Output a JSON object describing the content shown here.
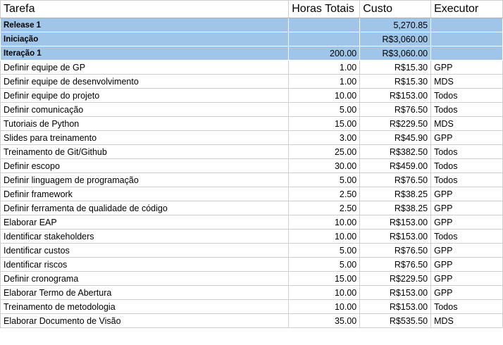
{
  "headers": {
    "task": "Tarefa",
    "hours": "Horas Totais",
    "cost": "Custo",
    "executor": "Executor"
  },
  "groups": [
    {
      "task": "Release 1",
      "hours": "",
      "cost": "5,270.85",
      "executor": ""
    },
    {
      "task": "Iniciação",
      "hours": "",
      "cost": "R$3,060.00",
      "executor": ""
    },
    {
      "task": "Iteração 1",
      "hours": "200.00",
      "cost": "R$3,060.00",
      "executor": ""
    }
  ],
  "rows": [
    {
      "task": "Definir equipe de GP",
      "hours": "1.00",
      "cost": "R$15.30",
      "executor": "GPP"
    },
    {
      "task": "Definir equipe de desenvolvimento",
      "hours": "1.00",
      "cost": "R$15.30",
      "executor": "MDS"
    },
    {
      "task": "Definir equipe do projeto",
      "hours": "10.00",
      "cost": "R$153.00",
      "executor": "Todos"
    },
    {
      "task": "Definir comunicação",
      "hours": "5.00",
      "cost": "R$76.50",
      "executor": "Todos"
    },
    {
      "task": "Tutoriais de Python",
      "hours": "15.00",
      "cost": "R$229.50",
      "executor": "MDS"
    },
    {
      "task": "Slides para treinamento",
      "hours": "3.00",
      "cost": "R$45.90",
      "executor": "GPP"
    },
    {
      "task": "Treinamento de Git/Github",
      "hours": "25.00",
      "cost": "R$382.50",
      "executor": "Todos"
    },
    {
      "task": "Definir escopo",
      "hours": "30.00",
      "cost": "R$459.00",
      "executor": "Todos"
    },
    {
      "task": "Definir linguagem de programação",
      "hours": "5.00",
      "cost": "R$76.50",
      "executor": "Todos"
    },
    {
      "task": "Definir framework",
      "hours": "2.50",
      "cost": "R$38.25",
      "executor": "GPP"
    },
    {
      "task": "Definir ferramenta de qualidade de código",
      "hours": "2.50",
      "cost": "R$38.25",
      "executor": "GPP"
    },
    {
      "task": "Elaborar EAP",
      "hours": "10.00",
      "cost": "R$153.00",
      "executor": "GPP"
    },
    {
      "task": "Identificar stakeholders",
      "hours": "10.00",
      "cost": "R$153.00",
      "executor": "Todos"
    },
    {
      "task": "Identificar custos",
      "hours": "5.00",
      "cost": "R$76.50",
      "executor": "GPP"
    },
    {
      "task": "Identificar riscos",
      "hours": "5.00",
      "cost": "R$76.50",
      "executor": "GPP"
    },
    {
      "task": "Definir cronograma",
      "hours": "15.00",
      "cost": "R$229.50",
      "executor": "GPP"
    },
    {
      "task": "Elaborar Termo de Abertura",
      "hours": "10.00",
      "cost": "R$153.00",
      "executor": "GPP"
    },
    {
      "task": "Treinamento de metodologia",
      "hours": "10.00",
      "cost": "R$153.00",
      "executor": "Todos"
    },
    {
      "task": "Elaborar Documento de Visão",
      "hours": "35.00",
      "cost": "R$535.50",
      "executor": "MDS"
    }
  ],
  "colors": {
    "group_fill": "#9fc5e8",
    "grid_line": "#cfcfcf"
  }
}
